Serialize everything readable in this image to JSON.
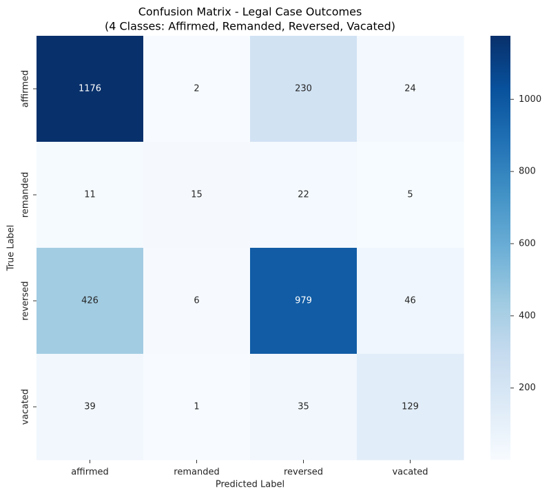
{
  "chart_data": {
    "type": "heatmap",
    "title": [
      "Confusion Matrix - Legal Case Outcomes",
      "(4 Classes: Affirmed, Remanded, Reversed, Vacated)"
    ],
    "xlabel": "Predicted Label",
    "ylabel": "True Label",
    "x_categories": [
      "affirmed",
      "remanded",
      "reversed",
      "vacated"
    ],
    "y_categories": [
      "affirmed",
      "remanded",
      "reversed",
      "vacated"
    ],
    "values": [
      [
        1176,
        2,
        230,
        24
      ],
      [
        11,
        15,
        22,
        5
      ],
      [
        426,
        6,
        979,
        46
      ],
      [
        39,
        1,
        35,
        129
      ]
    ],
    "colormap": "Blues",
    "zlim": [
      1,
      1176
    ],
    "zticks": [
      200,
      400,
      600,
      800,
      1000
    ]
  }
}
